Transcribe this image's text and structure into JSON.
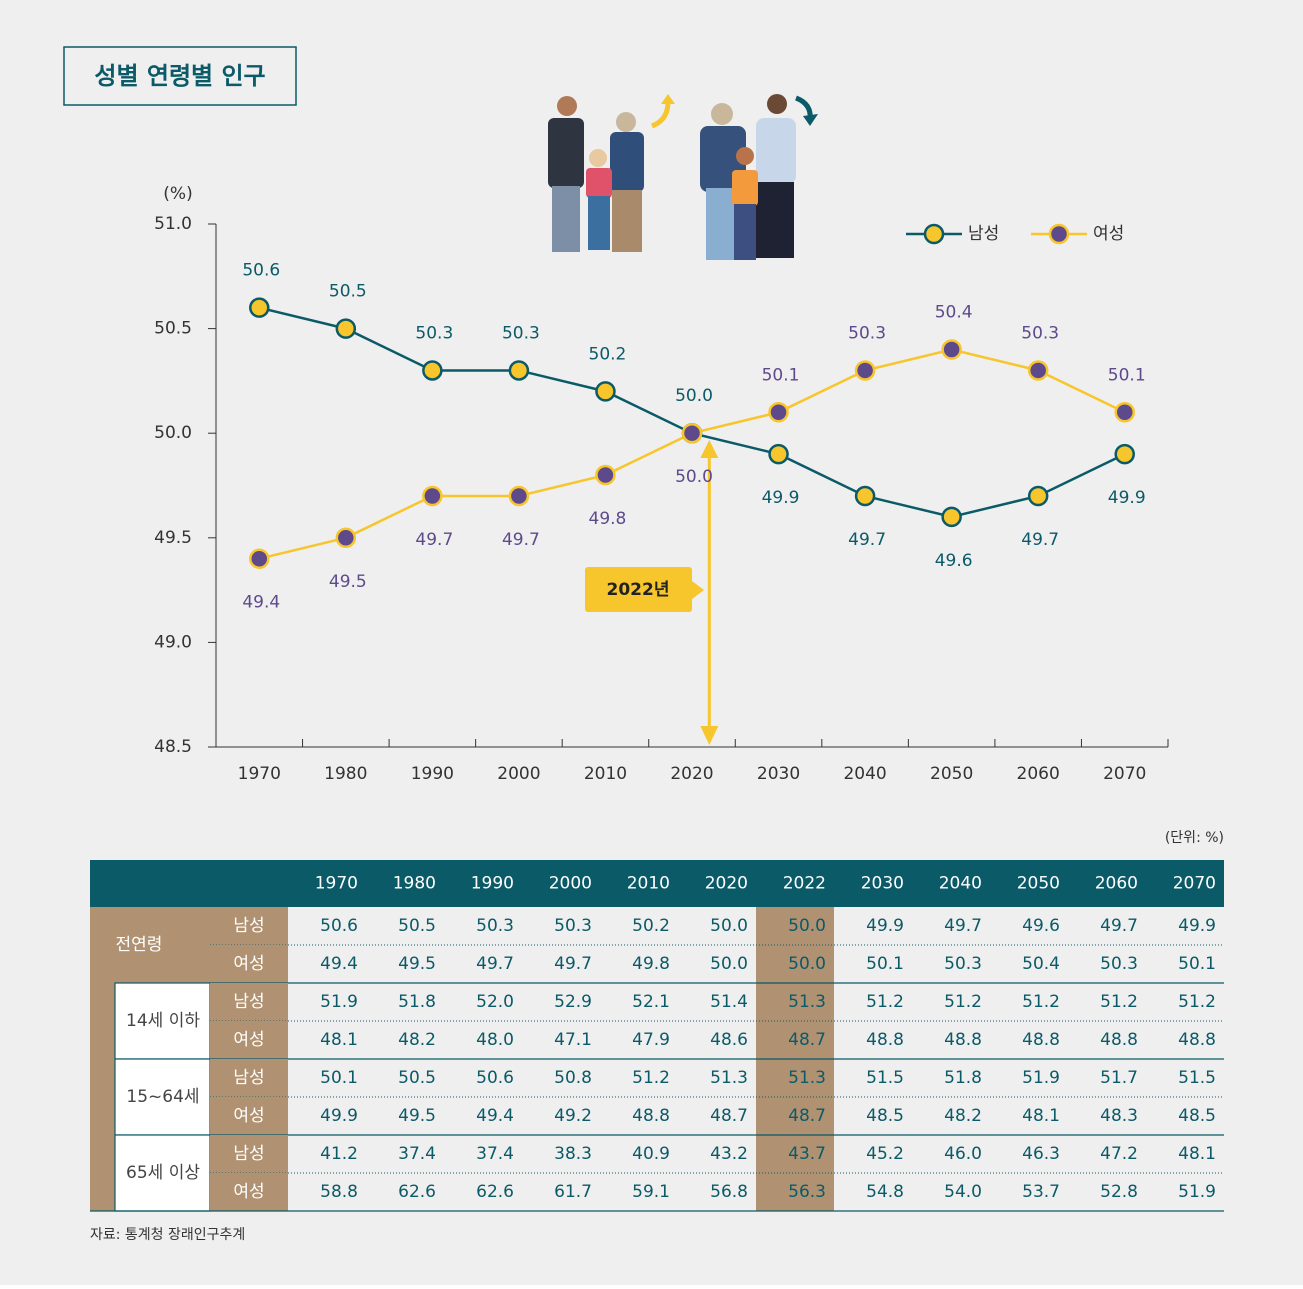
{
  "title": "성별 연령별 인구",
  "chart_data": {
    "type": "line",
    "y_label": "(%)",
    "categories": [
      "1970",
      "1980",
      "1990",
      "2000",
      "2010",
      "2020",
      "2030",
      "2040",
      "2050",
      "2060",
      "2070"
    ],
    "series": [
      {
        "name": "남성",
        "color": "#0b5a67",
        "marker_color": "#f7c52c",
        "values": [
          50.6,
          50.5,
          50.3,
          50.3,
          50.2,
          50.0,
          49.9,
          49.7,
          49.6,
          49.7,
          49.9
        ],
        "value_labels": [
          "50.6",
          "50.5",
          "50.3",
          "50.3",
          "50.2",
          "50.0",
          "49.9",
          "49.7",
          "49.6",
          "49.7",
          "49.9"
        ]
      },
      {
        "name": "여성",
        "color": "#f7c52c",
        "marker_color": "#5e4a8b",
        "values": [
          49.4,
          49.5,
          49.7,
          49.7,
          49.8,
          50.0,
          50.1,
          50.3,
          50.4,
          50.3,
          50.1
        ],
        "value_labels": [
          "49.4",
          "49.5",
          "49.7",
          "49.7",
          "49.8",
          "50.0",
          "50.1",
          "50.3",
          "50.4",
          "50.3",
          "50.1"
        ]
      }
    ],
    "ylim": [
      48.5,
      51.0
    ],
    "yticks": [
      48.5,
      {
        "value": 49.0,
        "label": "49.0"
      },
      49.5,
      {
        "value": 50.0,
        "label": "50.0"
      },
      50.5,
      {
        "value": 51.0,
        "label": "51.0"
      }
    ],
    "annotation": "2022년"
  },
  "table": {
    "unit": "(단위: %)",
    "header": [
      "1970",
      "1980",
      "1990",
      "2000",
      "2010",
      "2020",
      "2022",
      "2030",
      "2040",
      "2050",
      "2060",
      "2070"
    ],
    "groups": [
      {
        "label": "전연령",
        "rows": [
          {
            "label": "남성",
            "values": [
              "50.6",
              "50.5",
              "50.3",
              "50.3",
              "50.2",
              "50.0",
              "50.0",
              "49.9",
              "49.7",
              "49.6",
              "49.7",
              "49.9"
            ]
          },
          {
            "label": "여성",
            "values": [
              "49.4",
              "49.5",
              "49.7",
              "49.7",
              "49.8",
              "50.0",
              "50.0",
              "50.1",
              "50.3",
              "50.4",
              "50.3",
              "50.1"
            ]
          }
        ]
      },
      {
        "label": "14세 이하",
        "rows": [
          {
            "label": "남성",
            "values": [
              "51.9",
              "51.8",
              "52.0",
              "52.9",
              "52.1",
              "51.4",
              "51.3",
              "51.2",
              "51.2",
              "51.2",
              "51.2",
              "51.2"
            ]
          },
          {
            "label": "여성",
            "values": [
              "48.1",
              "48.2",
              "48.0",
              "47.1",
              "47.9",
              "48.6",
              "48.7",
              "48.8",
              "48.8",
              "48.8",
              "48.8",
              "48.8"
            ]
          }
        ]
      },
      {
        "label": "15~64세",
        "rows": [
          {
            "label": "남성",
            "values": [
              "50.1",
              "50.5",
              "50.6",
              "50.8",
              "51.2",
              "51.3",
              "51.3",
              "51.5",
              "51.8",
              "51.9",
              "51.7",
              "51.5"
            ]
          },
          {
            "label": "여성",
            "values": [
              "49.9",
              "49.5",
              "49.4",
              "49.2",
              "48.8",
              "48.7",
              "48.7",
              "48.5",
              "48.2",
              "48.1",
              "48.3",
              "48.5"
            ]
          }
        ]
      },
      {
        "label": "65세 이상",
        "rows": [
          {
            "label": "남성",
            "values": [
              "41.2",
              "37.4",
              "37.4",
              "38.3",
              "40.9",
              "43.2",
              "43.7",
              "45.2",
              "46.0",
              "46.3",
              "47.2",
              "48.1"
            ]
          },
          {
            "label": "여성",
            "values": [
              "58.8",
              "62.6",
              "62.6",
              "61.7",
              "59.1",
              "56.8",
              "56.3",
              "54.8",
              "54.0",
              "53.7",
              "52.8",
              "51.9"
            ]
          }
        ]
      }
    ]
  },
  "source": "자료: 통계청 장래인구추계"
}
